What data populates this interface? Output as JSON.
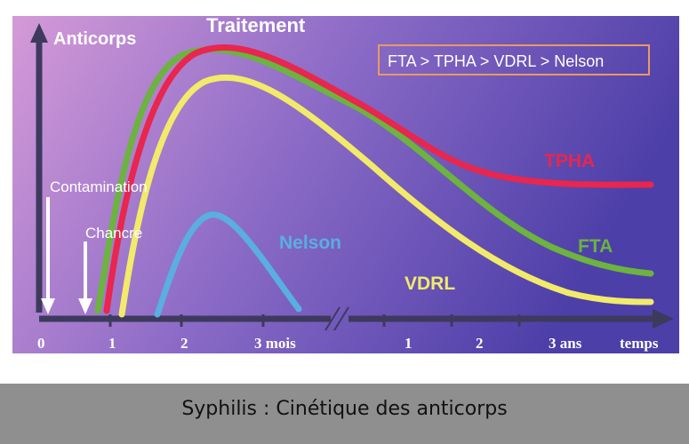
{
  "title": "Traitement",
  "y_axis_label": "Anticorps",
  "x_axis_label": "temps",
  "legend_box": "FTA > TPHA > VDRL > Nelson",
  "events": {
    "contamination": "Contamination",
    "chancre": "Chancre"
  },
  "ticks_months": [
    "0",
    "1",
    "2",
    "3 mois"
  ],
  "ticks_years": [
    "1",
    "2",
    "3 ans"
  ],
  "curves": [
    {
      "name": "TPHA",
      "color": "#e8264e"
    },
    {
      "name": "FTA",
      "color": "#6cb33f"
    },
    {
      "name": "VDRL",
      "color": "#f2ea6b"
    },
    {
      "name": "Nelson",
      "color": "#5aaee0"
    }
  ],
  "colors": {
    "bg_left": "#d59ad8",
    "bg_right": "#4d3fa8",
    "axis": "#3d3a5e",
    "legend_border": "#e89a63",
    "label_white": "#ffffff"
  },
  "caption": "Syphilis : Cinétique des anticorps"
}
